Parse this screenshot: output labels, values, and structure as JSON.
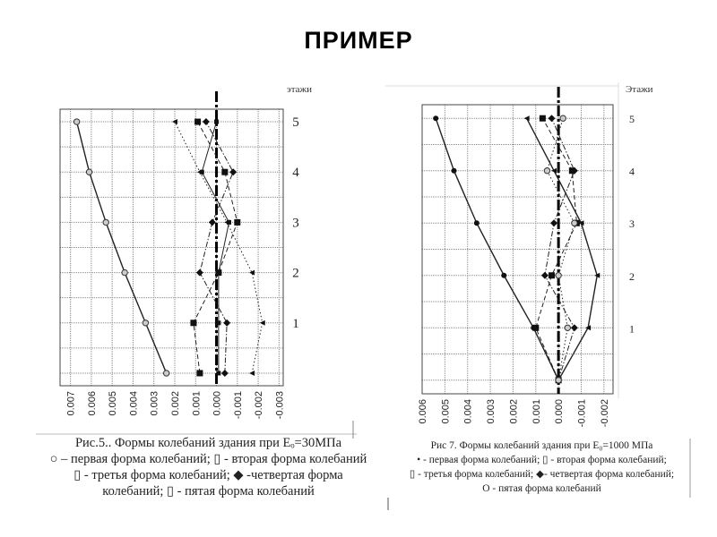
{
  "slide_title": "ПРИМЕР",
  "chart_data": [
    {
      "type": "line",
      "ylabel": "этажи",
      "xlim": [
        0.0075,
        -0.0032
      ],
      "ylim": [
        -0.25,
        5.25
      ],
      "x_axis_reversed": true,
      "grid": true,
      "xticks": [
        "0.007",
        "0.006",
        "0.005",
        "0.004",
        "0.003",
        "0.002",
        "0.001",
        "0.000",
        "-0.001",
        "-0.002",
        "-0.003"
      ],
      "xtick_values": [
        0.007,
        0.006,
        0.005,
        0.004,
        0.003,
        0.002,
        0.001,
        0,
        -0.001,
        -0.002,
        -0.003
      ],
      "yticks": [
        "1",
        "2",
        "3",
        "4",
        "5"
      ],
      "ytick_values": [
        1,
        2,
        3,
        4,
        5
      ],
      "floors": [
        0,
        1,
        2,
        3,
        4,
        5
      ],
      "series": [
        {
          "marker": "open-circle",
          "line": "solid",
          "values": [
            0.0024,
            0.0034,
            0.0044,
            0.0053,
            0.0061,
            0.0067
          ]
        },
        {
          "marker": "square",
          "line": "dash",
          "values": [
            0.0008,
            0.0011,
            -0.0001,
            -0.001,
            -0.0004,
            0.0009
          ]
        },
        {
          "marker": "triangle",
          "line": "dotted",
          "values": [
            -0.0017,
            -0.0022,
            -0.0017,
            -0.0005,
            0.0008,
            0.002
          ]
        },
        {
          "marker": "diamond",
          "line": "dash-dot",
          "values": [
            -0.0004,
            -0.0005,
            0.0008,
            0.0002,
            -0.0008,
            0.0005
          ]
        },
        {
          "marker": "small-square",
          "line": "solid-thin",
          "values": [
            -0.0001,
            -0.0001,
            -0.0001,
            -0.0006,
            0.0007,
            0.0
          ]
        }
      ],
      "zero_line": "thick dash-dot",
      "caption": [
        "Рис.5.. Формы колебаний здания при Еₒ=30МПа",
        "○ – первая форма колебаний; ▯ - вторая форма колебаний",
        "▯ - третья форма колебаний; ◆ -четвертая форма",
        "колебаний; ▯ - пятая форма колебаний"
      ]
    },
    {
      "type": "line",
      "ylabel": "Этажи",
      "xlim": [
        0.006,
        -0.0024
      ],
      "ylim": [
        -0.26,
        5.26
      ],
      "x_axis_reversed": true,
      "grid": true,
      "xticks": [
        "0.006",
        "0.005",
        "0.004",
        "0.003",
        "0.002",
        "0.001",
        "0.000",
        "-0.001",
        "-0.002"
      ],
      "xtick_values": [
        0.006,
        0.005,
        0.004,
        0.003,
        0.002,
        0.001,
        0,
        -0.001,
        -0.002
      ],
      "yticks": [
        "1",
        "2",
        "3",
        "4",
        "5"
      ],
      "ytick_values": [
        1,
        2,
        3,
        4,
        5
      ],
      "floors": [
        0,
        1,
        2,
        3,
        4,
        5
      ],
      "series": [
        {
          "marker": "filled-circle",
          "line": "solid",
          "values": [
            0.0,
            0.0011,
            0.0024,
            0.0036,
            0.0046,
            0.0054
          ]
        },
        {
          "marker": "square",
          "line": "dash",
          "values": [
            0.0,
            0.001,
            0.0003,
            -0.0008,
            -0.0006,
            0.0007
          ]
        },
        {
          "marker": "triangle",
          "line": "solid",
          "values": [
            0.0,
            -0.0013,
            -0.0017,
            -0.001,
            0.0002,
            0.0014
          ]
        },
        {
          "marker": "diamond",
          "line": "dash-dot",
          "values": [
            0.0,
            -0.0007,
            0.0006,
            0.0002,
            -0.0007,
            0.0003
          ]
        },
        {
          "marker": "open-circle",
          "line": "dotted",
          "values": [
            0.0,
            -0.0004,
            0.0,
            -0.0007,
            0.0005,
            -0.0002
          ]
        }
      ],
      "zero_line": "thick dash-dot",
      "caption": [
        "Рис 7. Формы колебаний здания при Е₀=1000 МПа",
        "• - первая форма колебаний; ▯ - вторая форма колебаний;",
        "▯ - третья форма колебаний; ◆- четвертая форма колебаний;",
        "O - пятая форма колебаний"
      ]
    }
  ]
}
